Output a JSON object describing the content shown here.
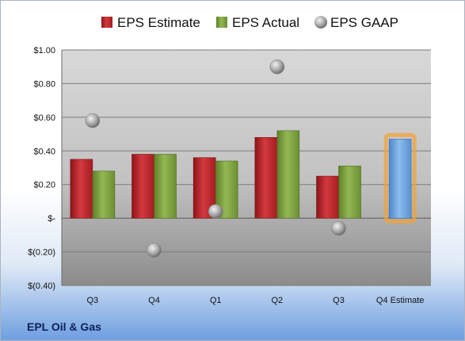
{
  "company_name": "EPL Oil & Gas",
  "chart_data": {
    "type": "bar",
    "categories": [
      "Q3",
      "Q4",
      "Q1",
      "Q2",
      "Q3",
      "Q4 Estimate"
    ],
    "series": [
      {
        "name": "EPS Estimate",
        "kind": "bar",
        "values": [
          0.35,
          0.38,
          0.36,
          0.48,
          0.25,
          null
        ]
      },
      {
        "name": "EPS Actual",
        "kind": "bar",
        "values": [
          0.28,
          0.38,
          0.34,
          0.52,
          0.31,
          null
        ]
      },
      {
        "name": "EPS GAAP",
        "kind": "point",
        "values": [
          0.58,
          -0.19,
          0.04,
          0.9,
          -0.06,
          null
        ]
      }
    ],
    "forecast": {
      "category_index": 5,
      "value": 0.47
    },
    "ylim": [
      -0.4,
      1.0
    ],
    "yticks": [
      1.0,
      0.8,
      0.6,
      0.4,
      0.2,
      0.0,
      -0.2,
      -0.4
    ],
    "ytick_labels": [
      "$1.00",
      "$0.80",
      "$0.60",
      "$0.40",
      "$0.20",
      "$-",
      "$(0.20)",
      "$(0.40)"
    ],
    "legend_position": "top",
    "grid": true,
    "colors": {
      "estimate": "#c0272d",
      "actual": "#7fa33f",
      "gaap": "#b8b8b8",
      "forecast": "#6fa3dc",
      "forecast_glow": "#f2a33a"
    }
  }
}
